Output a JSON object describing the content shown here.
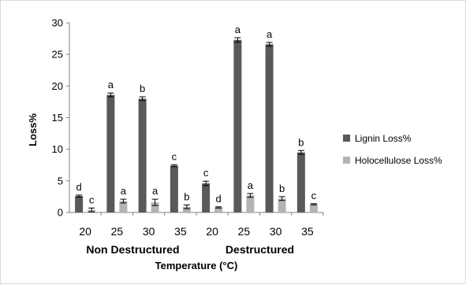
{
  "chart_data": {
    "type": "bar",
    "xlabel": "Temperature (°C)",
    "ylabel": "Loss%",
    "ylim": [
      0,
      30
    ],
    "yticks": [
      0,
      5,
      10,
      15,
      20,
      25,
      30
    ],
    "grid": false,
    "legend_position": "right",
    "groups": [
      {
        "label": "Non Destructured",
        "categories": [
          "20",
          "25",
          "30",
          "35"
        ]
      },
      {
        "label": "Destructured",
        "categories": [
          "20",
          "25",
          "30",
          "35"
        ]
      }
    ],
    "categories": [
      "20",
      "25",
      "30",
      "35",
      "20",
      "25",
      "30",
      "35"
    ],
    "series": [
      {
        "name": "Lignin Loss%",
        "color": "#595959",
        "values": [
          2.6,
          18.6,
          18.0,
          7.4,
          4.6,
          27.3,
          26.6,
          9.5
        ],
        "errors": [
          0.15,
          0.3,
          0.3,
          0.15,
          0.35,
          0.35,
          0.3,
          0.3
        ],
        "letters": [
          "d",
          "a",
          "b",
          "c",
          "c",
          "a",
          "a",
          "b"
        ]
      },
      {
        "name": "Holocellulose Loss%",
        "color": "#b3b3b3",
        "values": [
          0.4,
          1.8,
          1.6,
          0.9,
          0.8,
          2.7,
          2.2,
          1.3
        ],
        "errors": [
          0.3,
          0.3,
          0.5,
          0.3,
          0.1,
          0.3,
          0.3,
          0.1
        ],
        "letters": [
          "c",
          "a",
          "a",
          "b",
          "d",
          "a",
          "b",
          "c"
        ]
      }
    ]
  }
}
